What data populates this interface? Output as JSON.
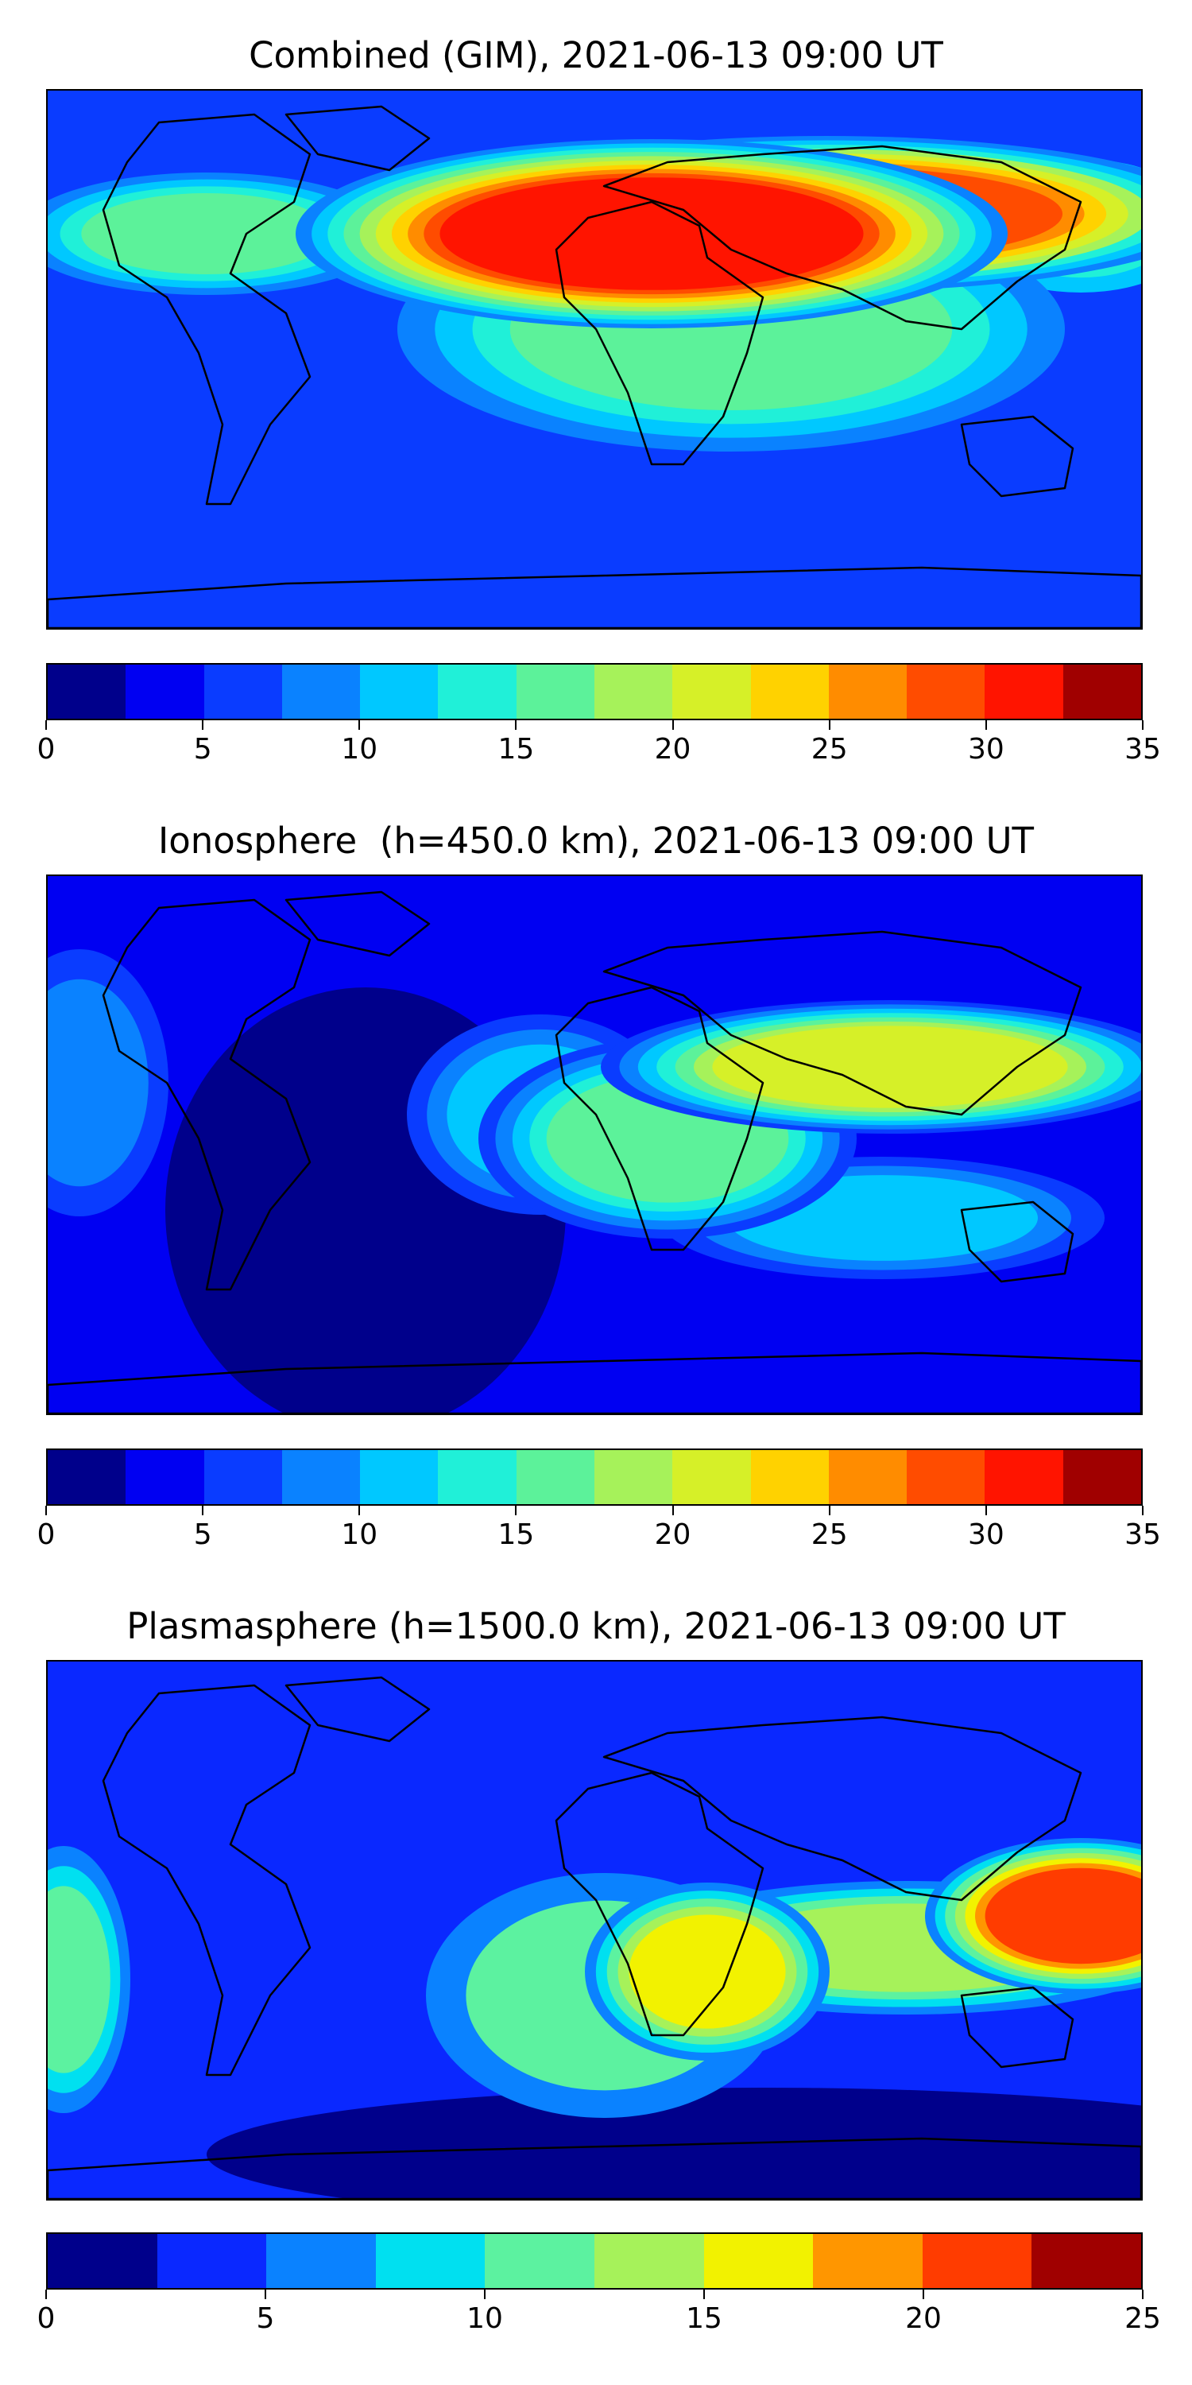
{
  "panels": [
    {
      "title": "Combined (GIM), 2021-06-13 09:00 UT",
      "colorbar": {
        "ticks": [
          "0",
          "5",
          "10",
          "15",
          "20",
          "25",
          "30",
          "35"
        ],
        "colors": [
          "#00008b",
          "#0000f2",
          "#0a3cff",
          "#0a82ff",
          "#00c8ff",
          "#20f0d8",
          "#5cf29a",
          "#a6f25a",
          "#d6f028",
          "#ffd200",
          "#ff8c00",
          "#ff4c00",
          "#ff1400",
          "#a00000"
        ]
      },
      "chart_data": {
        "type": "heatmap",
        "title": "Combined (GIM), 2021-06-13 09:00 UT",
        "xlabel": "",
        "ylabel": "",
        "value_range": [
          0,
          35
        ],
        "levels": [
          0,
          2.5,
          5,
          7.5,
          10,
          12.5,
          15,
          17.5,
          20,
          22.5,
          25,
          27.5,
          30,
          32.5,
          35
        ],
        "background_level_value": 7,
        "features": [
          {
            "region": "northern Africa / Middle East / southern Asia",
            "peak_value": 31
          },
          {
            "region": "equatorial Indian Ocean / Indonesia",
            "peak_value": 28
          },
          {
            "region": "central Atlantic",
            "peak_value": 17
          },
          {
            "region": "South Atlantic / Southern Africa",
            "peak_value": 13
          },
          {
            "region": "eastern Pacific (western edge)",
            "peak_value": 16
          },
          {
            "region": "North America / North Pacific",
            "peak_value": 5
          },
          {
            "region": "Antarctica",
            "peak_value": 4
          }
        ]
      }
    },
    {
      "title": "Ionosphere  (h=450.0 km), 2021-06-13 09:00 UT",
      "colorbar": {
        "ticks": [
          "0",
          "5",
          "10",
          "15",
          "20",
          "25",
          "30",
          "35"
        ],
        "colors": [
          "#00008b",
          "#0000f2",
          "#0a3cff",
          "#0a82ff",
          "#00c8ff",
          "#20f0d8",
          "#5cf29a",
          "#a6f25a",
          "#d6f028",
          "#ffd200",
          "#ff8c00",
          "#ff4c00",
          "#ff1400",
          "#a00000"
        ]
      },
      "chart_data": {
        "type": "heatmap",
        "title": "Ionosphere  (h=450.0 km), 2021-06-13 09:00 UT",
        "xlabel": "",
        "ylabel": "",
        "value_range": [
          0,
          35
        ],
        "levels": [
          0,
          2.5,
          5,
          7.5,
          10,
          12.5,
          15,
          17.5,
          20,
          22.5,
          25,
          27.5,
          30,
          32.5,
          35
        ],
        "background_level_value": 4,
        "features": [
          {
            "region": "Middle East / southern Asia",
            "peak_value": 21
          },
          {
            "region": "western Africa",
            "peak_value": 16
          },
          {
            "region": "central Atlantic",
            "peak_value": 11
          },
          {
            "region": "Indian Ocean south",
            "peak_value": 12
          },
          {
            "region": "eastern Pacific (western edge)",
            "peak_value": 9
          },
          {
            "region": "South America / Southern Ocean",
            "peak_value": 2
          }
        ]
      }
    },
    {
      "title": "Plasmasphere (h=1500.0 km), 2021-06-13 09:00 UT",
      "colorbar": {
        "ticks": [
          "0",
          "5",
          "10",
          "15",
          "20",
          "25"
        ],
        "colors": [
          "#00008b",
          "#0a28ff",
          "#0a82ff",
          "#00e0f0",
          "#5cf2a0",
          "#a6f25a",
          "#f2f200",
          "#ff9600",
          "#ff3c00",
          "#a00000"
        ]
      },
      "chart_data": {
        "type": "heatmap",
        "title": "Plasmasphere (h=1500.0 km), 2021-06-13 09:00 UT",
        "xlabel": "",
        "ylabel": "",
        "value_range": [
          0,
          25
        ],
        "levels": [
          0,
          2.5,
          5,
          7.5,
          10,
          12.5,
          15,
          17.5,
          20,
          22.5,
          25
        ],
        "background_level_value": 4,
        "features": [
          {
            "region": "New Guinea / Indonesia",
            "peak_value": 21
          },
          {
            "region": "southern Africa",
            "peak_value": 16
          },
          {
            "region": "Indian Ocean",
            "peak_value": 14
          },
          {
            "region": "tropical Atlantic",
            "peak_value": 10
          },
          {
            "region": "eastern Pacific (western edge)",
            "peak_value": 11
          },
          {
            "region": "Antarctica / southern polar",
            "peak_value": 1
          }
        ]
      }
    }
  ]
}
